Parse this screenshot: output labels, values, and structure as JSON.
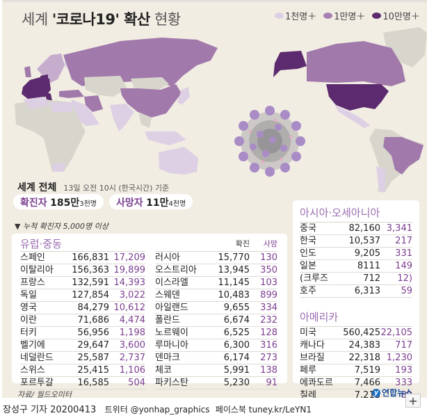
{
  "title": {
    "prefix": "세계 ",
    "bold": "'코로나19' 확산",
    "suffix": " 현황"
  },
  "legend": [
    {
      "label": "1천명＋",
      "color": "#ddd0e4"
    },
    {
      "label": "1만명＋",
      "color": "#a67fb4"
    },
    {
      "label": "10만명＋",
      "color": "#5c2a6e"
    }
  ],
  "summary": {
    "heading": "세계 전체",
    "as_of": "13일 오전 10시 (한국시간) 기준",
    "confirmed": {
      "label": "확진자",
      "main": "185만",
      "rest": "3천명"
    },
    "deaths": {
      "label": "사망자",
      "main": "11만",
      "rest": "4천명"
    }
  },
  "note": "▼ 누적 확진자 5,000명 이상",
  "columns": {
    "confirmed": "확진",
    "deaths": "사망"
  },
  "europe_mideast": {
    "title": "유럽·중동",
    "left": [
      {
        "name": "스페인",
        "confirmed": "166,831",
        "deaths": "17,209"
      },
      {
        "name": "이탈리아",
        "confirmed": "156,363",
        "deaths": "19,899"
      },
      {
        "name": "프랑스",
        "confirmed": "132,591",
        "deaths": "14,393"
      },
      {
        "name": "독일",
        "confirmed": "127,854",
        "deaths": "3,022"
      },
      {
        "name": "영국",
        "confirmed": "84,279",
        "deaths": "10,612"
      },
      {
        "name": "이란",
        "confirmed": "71,686",
        "deaths": "4,474"
      },
      {
        "name": "터키",
        "confirmed": "56,956",
        "deaths": "1,198"
      },
      {
        "name": "벨기에",
        "confirmed": "29,647",
        "deaths": "3,600"
      },
      {
        "name": "네덜란드",
        "confirmed": "25,587",
        "deaths": "2,737"
      },
      {
        "name": "스위스",
        "confirmed": "25,415",
        "deaths": "1,106"
      },
      {
        "name": "포르투갈",
        "confirmed": "16,585",
        "deaths": "504"
      }
    ],
    "right": [
      {
        "name": "러시아",
        "confirmed": "15,770",
        "deaths": "130"
      },
      {
        "name": "오스트리아",
        "confirmed": "13,945",
        "deaths": "350"
      },
      {
        "name": "이스라엘",
        "confirmed": "11,145",
        "deaths": "103"
      },
      {
        "name": "스웨덴",
        "confirmed": "10,483",
        "deaths": "899"
      },
      {
        "name": "아일랜드",
        "confirmed": "9,655",
        "deaths": "334"
      },
      {
        "name": "폴란드",
        "confirmed": "6,674",
        "deaths": "232"
      },
      {
        "name": "노르웨이",
        "confirmed": "6,525",
        "deaths": "128"
      },
      {
        "name": "루마니아",
        "confirmed": "6,300",
        "deaths": "316"
      },
      {
        "name": "덴마크",
        "confirmed": "6,174",
        "deaths": "273"
      },
      {
        "name": "체코",
        "confirmed": "5,991",
        "deaths": "138"
      },
      {
        "name": "파키스탄",
        "confirmed": "5,230",
        "deaths": "91"
      }
    ]
  },
  "asia_oceania": {
    "title": "아시아·오세아니아",
    "rows": [
      {
        "name": "중국",
        "confirmed": "82,160",
        "deaths": "3,341"
      },
      {
        "name": "한국",
        "confirmed": "10,537",
        "deaths": "217"
      },
      {
        "name": "인도",
        "confirmed": "9,205",
        "deaths": "331"
      },
      {
        "name": "일본",
        "confirmed": "8111",
        "deaths": "149"
      },
      {
        "name": "(크루즈",
        "confirmed": "712",
        "deaths": "12)"
      },
      {
        "name": "호주",
        "confirmed": "6,313",
        "deaths": "59"
      }
    ]
  },
  "americas": {
    "title": "아메리카",
    "rows": [
      {
        "name": "미국",
        "confirmed": "560,425",
        "deaths": "22,105"
      },
      {
        "name": "캐나다",
        "confirmed": "24,383",
        "deaths": "717"
      },
      {
        "name": "브라질",
        "confirmed": "22,318",
        "deaths": "1,230"
      },
      {
        "name": "페루",
        "confirmed": "7,519",
        "deaths": "193"
      },
      {
        "name": "에콰도르",
        "confirmed": "7,466",
        "deaths": "333"
      },
      {
        "name": "칠레",
        "confirmed": "7,213",
        "deaths": "80"
      }
    ]
  },
  "source": "자료/ 월드오미터",
  "logo": "연합뉴스",
  "footer": {
    "reporter": "장성구 기자 20200413",
    "twitter": "트위터 @yonhap_graphics",
    "facebook": "페이스북 tuney.kr/LeYN1"
  },
  "zoom_button": "+"
}
